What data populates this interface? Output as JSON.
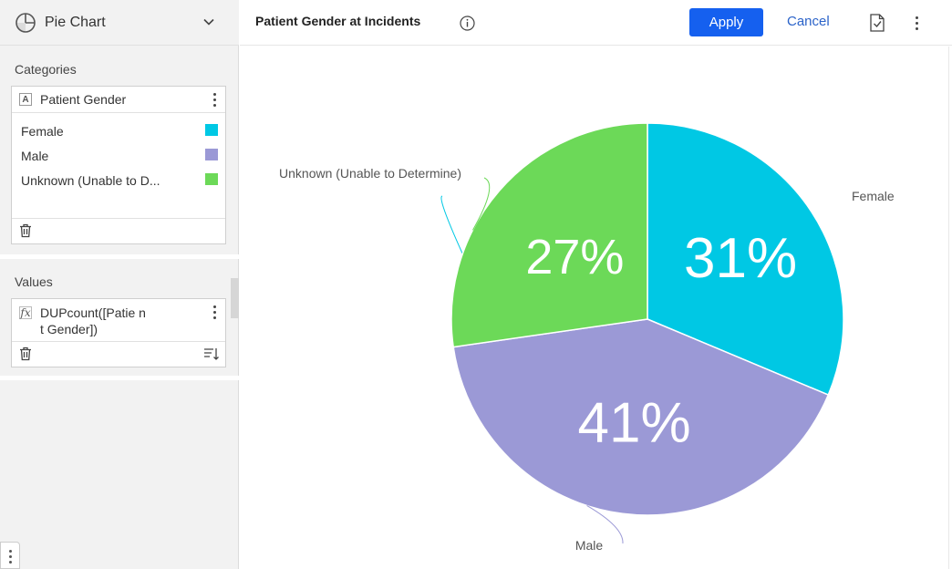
{
  "chart_type_selector": {
    "label": "Pie Chart",
    "icon": "pie-chart-icon"
  },
  "categories": {
    "title": "Categories",
    "field": {
      "type_badge": "A",
      "name": "Patient Gender"
    },
    "items": [
      {
        "label": "Female",
        "color": "#00c8e4"
      },
      {
        "label": "Male",
        "color": "#9b99d6"
      },
      {
        "label": "Unknown (Unable to D...",
        "color": "#6cd958"
      }
    ]
  },
  "values": {
    "title": "Values",
    "field": {
      "type_badge": "fx",
      "expression": "DUPcount([Patie nt Gender])"
    }
  },
  "header": {
    "title": "Patient Gender at Incidents",
    "apply_label": "Apply",
    "cancel_label": "Cancel",
    "accent_color": "#1560ef"
  },
  "chart_data": {
    "type": "pie",
    "title": "",
    "slices": [
      {
        "label": "Female",
        "percent_label": "31%",
        "value": 31,
        "color": "#00c8e4"
      },
      {
        "label": "Male",
        "percent_label": "41%",
        "value": 41,
        "color": "#9b99d6"
      },
      {
        "label": "Unknown (Unable to Determine)",
        "percent_label": "27%",
        "value": 27,
        "color": "#6cd958"
      }
    ],
    "start_angle": "12 o'clock",
    "direction": "clockwise",
    "labels": "outside with leader lines"
  }
}
